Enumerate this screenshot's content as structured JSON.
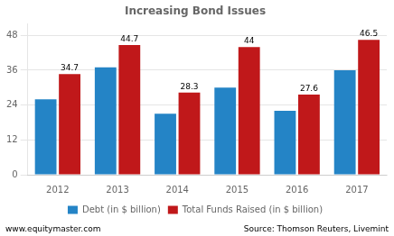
{
  "chart_data": {
    "type": "bar",
    "title": "Increasing Bond Issues",
    "categories": [
      "2012",
      "2013",
      "2014",
      "2015",
      "2016",
      "2017"
    ],
    "series": [
      {
        "name": "Debt (in $ billion)",
        "color": "#2484c6",
        "values": [
          26.0,
          37.0,
          21.0,
          30.0,
          22.0,
          36.0
        ]
      },
      {
        "name": "Total Funds Raised (in $ billion)",
        "color": "#c0181a",
        "values": [
          34.7,
          44.7,
          28.3,
          44.0,
          27.6,
          46.5
        ],
        "data_labels": true
      }
    ],
    "ylim": [
      0,
      52
    ],
    "yticks": [
      0,
      12,
      24,
      36,
      48
    ],
    "grid": true,
    "legend": "bottom",
    "annotations": [
      "www.equitymaster.com",
      "Source: Thomson Reuters, Livemint"
    ]
  }
}
